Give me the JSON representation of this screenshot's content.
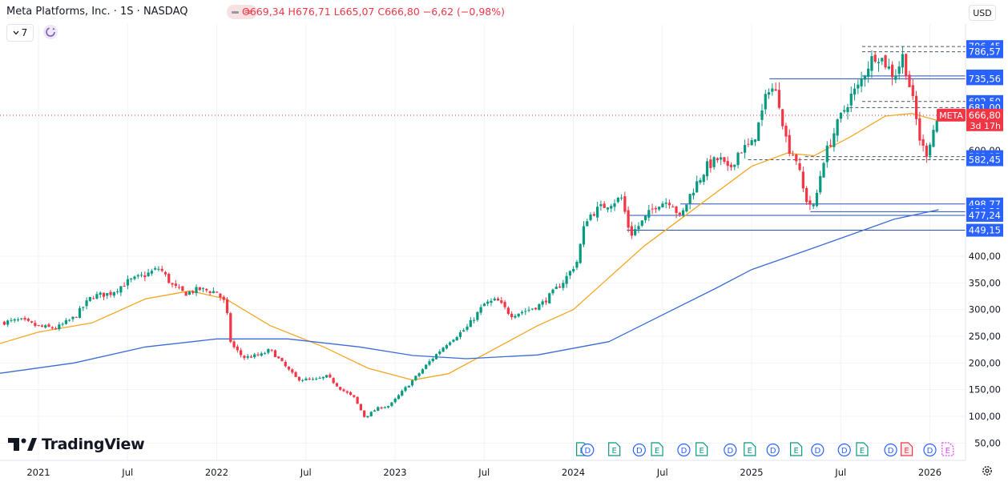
{
  "header": {
    "symbol_title": "Meta Platforms, Inc. · 1S · NASDAQ",
    "ohlc": "O669,34 H676,71 L665,07 C666,80 −6,62 (−0,98%)",
    "interval_value": "7",
    "currency": "USD"
  },
  "branding": {
    "logo_text": "TradingView"
  },
  "icons": {
    "indicator_toggle": "wave-icon",
    "refresh": "refresh-icon",
    "settings": "gear-icon"
  },
  "colors": {
    "up": "#089981",
    "down": "#f23645",
    "ma_short": "#f5a623",
    "ma_long": "#3b6bd6",
    "label_blue": "#2962ff",
    "price_label": "#f23645",
    "ma_label": "#ff9800"
  },
  "chart_data": {
    "type": "candlestick",
    "y_axis": {
      "min": 40,
      "max": 810,
      "tick_labels": [
        "50,00",
        "100,00",
        "150,00",
        "200,00",
        "250,00",
        "300,00",
        "350,00",
        "400,00"
      ],
      "tick_values": [
        50,
        100,
        150,
        200,
        250,
        300,
        350,
        400
      ]
    },
    "x_axis": {
      "ticks": [
        {
          "label": "2021",
          "t": 2021.0
        },
        {
          "label": "Jul",
          "t": 2021.5
        },
        {
          "label": "2022",
          "t": 2022.0
        },
        {
          "label": "Jul",
          "t": 2022.5
        },
        {
          "label": "2023",
          "t": 2023.0
        },
        {
          "label": "Jul",
          "t": 2023.5
        },
        {
          "label": "2024",
          "t": 2024.0
        },
        {
          "label": "Jul",
          "t": 2024.5
        },
        {
          "label": "2025",
          "t": 2025.0
        },
        {
          "label": "Jul",
          "t": 2025.5
        },
        {
          "label": "2026",
          "t": 2026.0
        }
      ]
    },
    "price_path": [
      {
        "t": 2020.77,
        "p": 275
      },
      {
        "t": 2020.9,
        "p": 280
      },
      {
        "t": 2021.0,
        "p": 268
      },
      {
        "t": 2021.1,
        "p": 265
      },
      {
        "t": 2021.2,
        "p": 285
      },
      {
        "t": 2021.3,
        "p": 325
      },
      {
        "t": 2021.4,
        "p": 330
      },
      {
        "t": 2021.5,
        "p": 352
      },
      {
        "t": 2021.6,
        "p": 365
      },
      {
        "t": 2021.68,
        "p": 378
      },
      {
        "t": 2021.75,
        "p": 345
      },
      {
        "t": 2021.82,
        "p": 330
      },
      {
        "t": 2021.9,
        "p": 338
      },
      {
        "t": 2022.0,
        "p": 333
      },
      {
        "t": 2022.05,
        "p": 310
      },
      {
        "t": 2022.08,
        "p": 235
      },
      {
        "t": 2022.15,
        "p": 210
      },
      {
        "t": 2022.25,
        "p": 215
      },
      {
        "t": 2022.3,
        "p": 225
      },
      {
        "t": 2022.38,
        "p": 195
      },
      {
        "t": 2022.45,
        "p": 170
      },
      {
        "t": 2022.55,
        "p": 168
      },
      {
        "t": 2022.62,
        "p": 175
      },
      {
        "t": 2022.7,
        "p": 150
      },
      {
        "t": 2022.77,
        "p": 135
      },
      {
        "t": 2022.83,
        "p": 98
      },
      {
        "t": 2022.9,
        "p": 115
      },
      {
        "t": 2022.97,
        "p": 120
      },
      {
        "t": 2023.05,
        "p": 150
      },
      {
        "t": 2023.12,
        "p": 175
      },
      {
        "t": 2023.2,
        "p": 205
      },
      {
        "t": 2023.3,
        "p": 240
      },
      {
        "t": 2023.4,
        "p": 265
      },
      {
        "t": 2023.5,
        "p": 310
      },
      {
        "t": 2023.57,
        "p": 318
      },
      {
        "t": 2023.65,
        "p": 290
      },
      {
        "t": 2023.75,
        "p": 300
      },
      {
        "t": 2023.82,
        "p": 310
      },
      {
        "t": 2023.88,
        "p": 330
      },
      {
        "t": 2023.95,
        "p": 355
      },
      {
        "t": 2024.02,
        "p": 390
      },
      {
        "t": 2024.07,
        "p": 470
      },
      {
        "t": 2024.12,
        "p": 485
      },
      {
        "t": 2024.2,
        "p": 500
      },
      {
        "t": 2024.27,
        "p": 510
      },
      {
        "t": 2024.32,
        "p": 440
      },
      {
        "t": 2024.4,
        "p": 470
      },
      {
        "t": 2024.47,
        "p": 500
      },
      {
        "t": 2024.55,
        "p": 505
      },
      {
        "t": 2024.6,
        "p": 470
      },
      {
        "t": 2024.66,
        "p": 520
      },
      {
        "t": 2024.75,
        "p": 570
      },
      {
        "t": 2024.82,
        "p": 585
      },
      {
        "t": 2024.87,
        "p": 560
      },
      {
        "t": 2024.93,
        "p": 600
      },
      {
        "t": 2025.0,
        "p": 610
      },
      {
        "t": 2025.05,
        "p": 660
      },
      {
        "t": 2025.1,
        "p": 725
      },
      {
        "t": 2025.15,
        "p": 700
      },
      {
        "t": 2025.2,
        "p": 610
      },
      {
        "t": 2025.25,
        "p": 585
      },
      {
        "t": 2025.3,
        "p": 510
      },
      {
        "t": 2025.35,
        "p": 490
      },
      {
        "t": 2025.4,
        "p": 580
      },
      {
        "t": 2025.47,
        "p": 640
      },
      {
        "t": 2025.55,
        "p": 700
      },
      {
        "t": 2025.6,
        "p": 720
      },
      {
        "t": 2025.65,
        "p": 760
      },
      {
        "t": 2025.7,
        "p": 785
      },
      {
        "t": 2025.75,
        "p": 765
      },
      {
        "t": 2025.8,
        "p": 740
      },
      {
        "t": 2025.85,
        "p": 780
      },
      {
        "t": 2025.9,
        "p": 700
      },
      {
        "t": 2025.95,
        "p": 610
      },
      {
        "t": 2025.98,
        "p": 595
      },
      {
        "t": 2026.02,
        "p": 640
      },
      {
        "t": 2026.05,
        "p": 667
      }
    ],
    "series": [
      {
        "name": "ma_short",
        "values": [
          {
            "t": 2020.77,
            "p": 235
          },
          {
            "t": 2021.0,
            "p": 258
          },
          {
            "t": 2021.3,
            "p": 275
          },
          {
            "t": 2021.6,
            "p": 320
          },
          {
            "t": 2021.85,
            "p": 335
          },
          {
            "t": 2022.05,
            "p": 320
          },
          {
            "t": 2022.3,
            "p": 270
          },
          {
            "t": 2022.6,
            "p": 230
          },
          {
            "t": 2022.85,
            "p": 190
          },
          {
            "t": 2023.1,
            "p": 168
          },
          {
            "t": 2023.3,
            "p": 180
          },
          {
            "t": 2023.55,
            "p": 225
          },
          {
            "t": 2023.8,
            "p": 270
          },
          {
            "t": 2024.0,
            "p": 300
          },
          {
            "t": 2024.2,
            "p": 360
          },
          {
            "t": 2024.4,
            "p": 420
          },
          {
            "t": 2024.6,
            "p": 470
          },
          {
            "t": 2024.8,
            "p": 520
          },
          {
            "t": 2025.0,
            "p": 570
          },
          {
            "t": 2025.2,
            "p": 595
          },
          {
            "t": 2025.35,
            "p": 590
          },
          {
            "t": 2025.55,
            "p": 625
          },
          {
            "t": 2025.75,
            "p": 665
          },
          {
            "t": 2025.9,
            "p": 670
          },
          {
            "t": 2026.05,
            "p": 656
          }
        ]
      },
      {
        "name": "ma_long",
        "values": [
          {
            "t": 2020.77,
            "p": 180
          },
          {
            "t": 2021.2,
            "p": 200
          },
          {
            "t": 2021.6,
            "p": 230
          },
          {
            "t": 2022.0,
            "p": 245
          },
          {
            "t": 2022.4,
            "p": 245
          },
          {
            "t": 2022.8,
            "p": 230
          },
          {
            "t": 2023.1,
            "p": 214
          },
          {
            "t": 2023.4,
            "p": 208
          },
          {
            "t": 2023.8,
            "p": 215
          },
          {
            "t": 2024.2,
            "p": 240
          },
          {
            "t": 2024.5,
            "p": 290
          },
          {
            "t": 2024.8,
            "p": 340
          },
          {
            "t": 2025.0,
            "p": 375
          },
          {
            "t": 2025.3,
            "p": 410
          },
          {
            "t": 2025.55,
            "p": 440
          },
          {
            "t": 2025.8,
            "p": 470
          },
          {
            "t": 2026.05,
            "p": 488
          }
        ]
      }
    ],
    "price_levels": [
      {
        "label": "796,45",
        "value": 796.45,
        "style": "dashed",
        "from": 2025.62
      },
      {
        "label": "786,57",
        "value": 786.57,
        "style": "dashed",
        "from": 2025.62
      },
      {
        "label": "740,77",
        "value": 740.77,
        "style": "solid",
        "from": 2025.62
      },
      {
        "label": "735,56",
        "value": 735.56,
        "style": "solid",
        "from": 2025.1
      },
      {
        "label": "692,50",
        "value": 692.5,
        "style": "dashed",
        "from": 2025.62
      },
      {
        "label": "681,00",
        "value": 681.0,
        "style": "dashed",
        "from": 2025.55
      },
      {
        "label": "588,35",
        "value": 588.35,
        "style": "dashed",
        "from": 2025.3
      },
      {
        "label": "582,45",
        "value": 582.45,
        "style": "dashed",
        "from": 2024.98
      },
      {
        "label": "498,77",
        "value": 498.77,
        "style": "solid",
        "from": 2024.6
      },
      {
        "label": "484,30",
        "value": 484.3,
        "style": "solid",
        "from": 2025.33
      },
      {
        "label": "477,24",
        "value": 477.24,
        "style": "solid",
        "from": 2024.3
      },
      {
        "label": "449,15",
        "value": 449.15,
        "style": "solid",
        "from": 2024.3
      }
    ],
    "current_price": {
      "label": "666,80",
      "value": 666.8,
      "ticker": "META",
      "countdown": "3d 17h"
    },
    "ma_short_label": {
      "label": "656,29",
      "value": 656.29
    },
    "hidden_axis_label": {
      "label": "600,00",
      "value": 600
    },
    "events": [
      {
        "t": 2024.05,
        "code": "E"
      },
      {
        "t": 2024.08,
        "code": "D"
      },
      {
        "t": 2024.23,
        "code": "E"
      },
      {
        "t": 2024.37,
        "code": "D"
      },
      {
        "t": 2024.47,
        "code": "E"
      },
      {
        "t": 2024.62,
        "code": "D"
      },
      {
        "t": 2024.72,
        "code": "E"
      },
      {
        "t": 2024.88,
        "code": "D"
      },
      {
        "t": 2024.99,
        "code": "E"
      },
      {
        "t": 2025.12,
        "code": "D"
      },
      {
        "t": 2025.25,
        "code": "E"
      },
      {
        "t": 2025.37,
        "code": "D"
      },
      {
        "t": 2025.52,
        "code": "D"
      },
      {
        "t": 2025.62,
        "code": "E"
      },
      {
        "t": 2025.78,
        "code": "D"
      },
      {
        "t": 2025.87,
        "code": "E",
        "active": true
      },
      {
        "t": 2026.0,
        "code": "D"
      },
      {
        "t": 2026.1,
        "code": "E",
        "future": true
      }
    ]
  }
}
